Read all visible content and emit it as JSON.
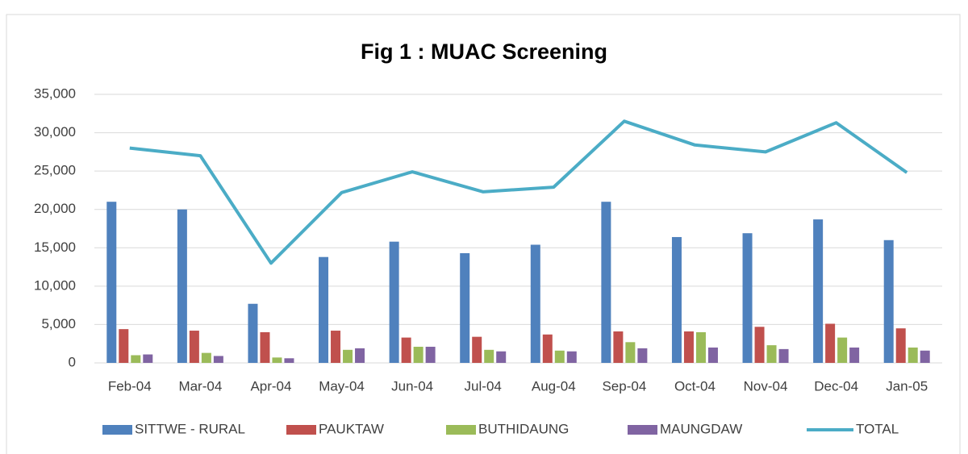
{
  "chart_data": {
    "type": "bar",
    "title": "Fig 1 : MUAC Screening",
    "categories": [
      "Feb-04",
      "Mar-04",
      "Apr-04",
      "May-04",
      "Jun-04",
      "Jul-04",
      "Aug-04",
      "Sep-04",
      "Oct-04",
      "Nov-04",
      "Dec-04",
      "Jan-05"
    ],
    "series": [
      {
        "name": "SITTWE - RURAL",
        "color": "#4f81bd",
        "type": "bar",
        "values": [
          21000,
          20000,
          7700,
          13800,
          15800,
          14300,
          15400,
          21000,
          16400,
          16900,
          18700,
          16000
        ]
      },
      {
        "name": "PAUKTAW",
        "color": "#c0504d",
        "type": "bar",
        "values": [
          4400,
          4200,
          4000,
          4200,
          3300,
          3400,
          3700,
          4100,
          4100,
          4700,
          5100,
          4500
        ]
      },
      {
        "name": "BUTHIDAUNG",
        "color": "#9bbb59",
        "type": "bar",
        "values": [
          1000,
          1300,
          700,
          1700,
          2100,
          1700,
          1600,
          2700,
          4000,
          2300,
          3300,
          2000
        ]
      },
      {
        "name": "MAUNGDAW",
        "color": "#8064a2",
        "type": "bar",
        "values": [
          1100,
          900,
          600,
          1900,
          2100,
          1500,
          1500,
          1900,
          2000,
          1800,
          2000,
          1600
        ]
      },
      {
        "name": "TOTAL",
        "color": "#4bacc6",
        "type": "line",
        "values": [
          28000,
          27000,
          13000,
          22200,
          24900,
          22300,
          22900,
          31500,
          28400,
          27500,
          31300,
          24800
        ]
      }
    ],
    "ylim": [
      0,
      35000
    ],
    "yticks": [
      0,
      {
        "value": 5000,
        "label": "5,000"
      },
      {
        "value": 10000,
        "label": "10,000"
      },
      {
        "value": 15000,
        "label": "15,000"
      },
      {
        "value": 20000,
        "label": "20,000"
      },
      {
        "value": 25000,
        "label": "25,000"
      },
      {
        "value": 30000,
        "label": "30,000"
      },
      {
        "value": 35000,
        "label": "35,000"
      }
    ],
    "grid": true,
    "legend": "bottom"
  }
}
